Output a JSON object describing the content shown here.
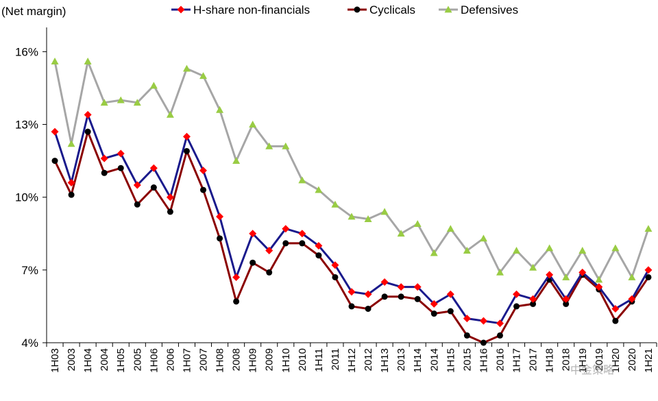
{
  "chart_data": {
    "type": "line",
    "ylabel": "(Net margin)",
    "ylim": [
      4,
      17
    ],
    "yticks": [
      4,
      7,
      10,
      13,
      16
    ],
    "ytick_labels": [
      "4%",
      "7%",
      "10%",
      "13%",
      "16%"
    ],
    "x": [
      "1H03",
      "2003",
      "1H04",
      "2004",
      "1H05",
      "2005",
      "1H06",
      "2006",
      "1H07",
      "2007",
      "1H08",
      "2008",
      "1H09",
      "2009",
      "1H10",
      "2010",
      "1H11",
      "2011",
      "1H12",
      "2012",
      "1H13",
      "2013",
      "1H14",
      "2014",
      "1H15",
      "2015",
      "1H16",
      "2016",
      "1H17",
      "2017",
      "1H18",
      "2018",
      "1H19",
      "2019",
      "1H20",
      "2020",
      "1H21"
    ],
    "series": [
      {
        "name": "H-share non-financials",
        "color": "#1a1a8c",
        "marker": "diamond",
        "marker_color": "#ff0000",
        "values": [
          12.7,
          10.6,
          13.4,
          11.6,
          11.8,
          10.5,
          11.2,
          10.0,
          12.5,
          11.1,
          9.2,
          6.7,
          8.5,
          7.8,
          8.7,
          8.5,
          8.0,
          7.2,
          6.1,
          6.0,
          6.5,
          6.3,
          6.3,
          5.6,
          6.0,
          5.0,
          4.9,
          4.8,
          6.0,
          5.8,
          6.8,
          5.8,
          6.9,
          6.3,
          5.4,
          5.8,
          7.0
        ]
      },
      {
        "name": "Cyclicals",
        "color": "#8b0000",
        "marker": "circle",
        "marker_color": "#000000",
        "values": [
          11.5,
          10.1,
          12.7,
          11.0,
          11.2,
          9.7,
          10.4,
          9.4,
          11.9,
          10.3,
          8.3,
          5.7,
          7.3,
          6.9,
          8.1,
          8.1,
          7.6,
          6.7,
          5.5,
          5.4,
          5.9,
          5.9,
          5.8,
          5.2,
          5.3,
          4.3,
          4.0,
          4.3,
          5.5,
          5.6,
          6.6,
          5.6,
          6.8,
          6.2,
          4.9,
          5.7,
          6.7
        ]
      },
      {
        "name": "Defensives",
        "color": "#a6a6a6",
        "marker": "triangle",
        "marker_color": "#99cc44",
        "values": [
          15.6,
          12.2,
          15.6,
          13.9,
          14.0,
          13.9,
          14.6,
          13.4,
          15.3,
          15.0,
          13.6,
          11.5,
          13.0,
          12.1,
          12.1,
          10.7,
          10.3,
          9.7,
          9.2,
          9.1,
          9.4,
          8.5,
          8.9,
          7.7,
          8.7,
          7.8,
          8.3,
          6.9,
          7.8,
          7.1,
          7.9,
          6.7,
          7.8,
          6.6,
          7.9,
          6.7,
          8.7
        ]
      }
    ],
    "legend_position": "top",
    "grid": false
  },
  "watermark_text": "中金策略"
}
